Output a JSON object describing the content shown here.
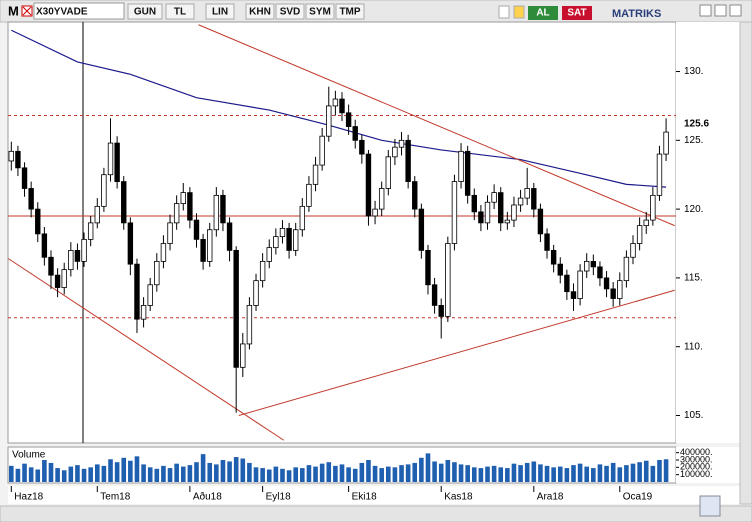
{
  "toolbar": {
    "logo": "M",
    "symbol": "X30YVADE",
    "buttons": [
      "GUN",
      "TL",
      "LIN",
      "KHN",
      "SVD",
      "SYM",
      "TMP"
    ],
    "buy": "AL",
    "sell": "SAT",
    "brand": "MATRIKS"
  },
  "chart_data": {
    "type": "candlestick",
    "ylim": [
      103.0,
      133.6
    ],
    "yticks": [
      {
        "value": 130,
        "label": "130."
      },
      {
        "value": 125,
        "label": "125."
      },
      {
        "value": 120,
        "label": "120."
      },
      {
        "value": 115,
        "label": "115."
      },
      {
        "value": 110,
        "label": "110."
      },
      {
        "value": 105,
        "label": "105."
      }
    ],
    "xlim": [
      -0.5,
      100.5
    ],
    "xticks": [
      {
        "value": 0,
        "label": "Haz18"
      },
      {
        "value": 13,
        "label": "Tem18"
      },
      {
        "value": 27,
        "label": "Aðu18"
      },
      {
        "value": 38,
        "label": "Eyl18"
      },
      {
        "value": 51,
        "label": "Eki18"
      },
      {
        "value": 65,
        "label": "Kas18"
      },
      {
        "value": 79,
        "label": "Ara18"
      },
      {
        "value": 92,
        "label": "Oca19"
      }
    ],
    "last_price": 125.6,
    "open": [
      123.5,
      124.2,
      123.0,
      121.5,
      120.0,
      118.2,
      116.5,
      115.2,
      114.3,
      115.6,
      117.0,
      116.2,
      117.8,
      119.0,
      120.2,
      122.5,
      124.8,
      122.0,
      119.0,
      116.0,
      112.0,
      113.0,
      114.5,
      116.2,
      117.5,
      119.0,
      120.4,
      121.2,
      119.2,
      117.8,
      116.2,
      118.5,
      121.0,
      119.0,
      117.0,
      108.5,
      110.2,
      113.0,
      114.8,
      116.2,
      117.2,
      118.0,
      118.6,
      117.0,
      118.5,
      120.2,
      121.8,
      123.2,
      125.3,
      127.5,
      128.0,
      127.0,
      126.0,
      125.0,
      124.0,
      119.5,
      120.0,
      121.5,
      123.8,
      124.5,
      125.0,
      122.0,
      120.0,
      117.0,
      114.5,
      113.0,
      112.2,
      117.5,
      122.0,
      124.2,
      121.0,
      119.8,
      119.0,
      120.5,
      121.2,
      119.0,
      119.2,
      120.3,
      120.8,
      121.5,
      120.0,
      118.2,
      117.0,
      116.0,
      115.2,
      114.0,
      113.5,
      115.5,
      116.2,
      115.8,
      115.0,
      114.2,
      113.5,
      114.8,
      116.5,
      117.5,
      118.8,
      119.2,
      121.0,
      124.0
    ],
    "high": [
      124.9,
      124.6,
      123.4,
      122.0,
      120.5,
      118.7,
      117.0,
      115.7,
      116.1,
      117.6,
      117.5,
      118.3,
      119.5,
      120.8,
      123.0,
      126.6,
      125.3,
      122.4,
      119.4,
      116.4,
      113.6,
      115.0,
      116.8,
      118.1,
      119.6,
      121.0,
      121.9,
      121.6,
      119.7,
      118.2,
      119.0,
      121.6,
      121.4,
      119.4,
      117.3,
      111.0,
      113.6,
      115.3,
      116.8,
      117.8,
      118.6,
      119.2,
      119.0,
      119.0,
      120.8,
      122.4,
      123.8,
      125.9,
      128.9,
      128.6,
      128.5,
      127.6,
      126.5,
      125.4,
      124.3,
      120.6,
      122.0,
      124.3,
      125.1,
      125.6,
      125.4,
      122.4,
      120.4,
      117.4,
      115.0,
      113.5,
      118.0,
      122.5,
      124.8,
      124.6,
      121.5,
      120.3,
      121.0,
      121.8,
      121.6,
      119.8,
      120.9,
      121.4,
      123.0,
      121.9,
      120.4,
      118.6,
      117.4,
      116.5,
      115.6,
      114.6,
      116.0,
      116.8,
      116.7,
      116.2,
      115.5,
      114.7,
      115.4,
      117.0,
      118.1,
      119.4,
      119.8,
      121.6,
      124.6,
      126.6
    ],
    "low": [
      122.8,
      122.4,
      120.9,
      119.4,
      117.6,
      115.9,
      114.2,
      113.6,
      113.8,
      115.1,
      115.6,
      115.8,
      117.3,
      118.6,
      119.8,
      122.0,
      121.5,
      118.5,
      115.2,
      111.0,
      111.4,
      112.6,
      114.0,
      115.7,
      117.0,
      118.5,
      119.9,
      118.6,
      117.2,
      115.6,
      115.8,
      118.0,
      118.4,
      116.2,
      105.2,
      107.8,
      109.8,
      112.6,
      114.3,
      115.7,
      116.7,
      117.5,
      116.4,
      116.6,
      118.0,
      119.8,
      121.3,
      122.8,
      124.9,
      126.8,
      126.4,
      125.4,
      124.4,
      123.3,
      118.8,
      118.9,
      119.5,
      121.0,
      123.2,
      123.9,
      121.5,
      119.4,
      116.4,
      113.8,
      112.4,
      110.6,
      111.8,
      117.0,
      121.5,
      120.4,
      119.2,
      118.4,
      118.5,
      120.0,
      118.4,
      118.5,
      118.7,
      119.8,
      120.3,
      119.4,
      117.6,
      116.4,
      115.4,
      114.6,
      113.4,
      112.6,
      113.0,
      115.0,
      115.2,
      114.4,
      113.6,
      112.9,
      113.0,
      114.3,
      116.0,
      117.0,
      118.2,
      118.8,
      120.6,
      123.5
    ],
    "close": [
      124.2,
      123.0,
      121.5,
      120.0,
      118.2,
      116.5,
      115.2,
      114.3,
      115.6,
      117.0,
      116.2,
      117.8,
      119.0,
      120.2,
      122.5,
      124.8,
      122.0,
      119.0,
      116.0,
      112.0,
      113.0,
      114.5,
      116.2,
      117.5,
      119.0,
      120.4,
      121.2,
      119.2,
      117.8,
      116.2,
      118.5,
      121.0,
      119.0,
      117.0,
      108.5,
      110.2,
      113.0,
      114.8,
      116.2,
      117.2,
      118.0,
      118.6,
      117.0,
      118.5,
      120.2,
      121.8,
      123.2,
      125.3,
      127.5,
      128.0,
      127.0,
      126.0,
      125.0,
      124.0,
      119.5,
      120.0,
      121.5,
      123.8,
      124.5,
      125.0,
      122.0,
      120.0,
      117.0,
      114.5,
      113.0,
      112.2,
      117.5,
      122.0,
      124.2,
      121.0,
      119.8,
      119.0,
      120.5,
      121.2,
      119.0,
      119.2,
      120.3,
      120.8,
      121.5,
      120.0,
      118.2,
      117.0,
      116.0,
      115.2,
      114.0,
      113.5,
      115.5,
      116.2,
      115.8,
      115.0,
      114.2,
      113.5,
      114.8,
      116.5,
      117.5,
      118.8,
      119.2,
      121.0,
      124.0,
      125.6
    ],
    "moving_average": {
      "color": "#1a1a8c",
      "x": [
        0,
        10,
        18,
        28,
        39,
        48,
        56,
        65,
        77,
        86,
        93,
        99
      ],
      "values": [
        133.0,
        130.7,
        129.8,
        128.1,
        127.2,
        126.1,
        125.0,
        124.3,
        123.6,
        122.6,
        121.8,
        121.6
      ]
    },
    "trend_lines": [
      {
        "x": [
          28.3,
          100.3
        ],
        "y": [
          133.4,
          118.8
        ]
      },
      {
        "x": [
          -0.45,
          41.2
        ],
        "y": [
          116.4,
          103.2
        ]
      },
      {
        "x": [
          34.4,
          100.3
        ],
        "y": [
          105.0,
          114.1
        ]
      }
    ],
    "dashed_levels": [
      126.8,
      112.1
    ],
    "solid_levels": [
      119.5
    ],
    "volume": {
      "name": "Volume",
      "color": "#1f5fb0",
      "ylim": [
        0,
        450000
      ],
      "yticks": [
        {
          "value": 400000,
          "label": "400000."
        },
        {
          "value": 300000,
          "label": "300000."
        },
        {
          "value": 200000,
          "label": "200000."
        },
        {
          "value": 100000,
          "label": "100000."
        }
      ],
      "values": [
        220000,
        180000,
        250000,
        200000,
        170000,
        300000,
        260000,
        190000,
        160000,
        210000,
        230000,
        180000,
        200000,
        240000,
        220000,
        310000,
        270000,
        330000,
        290000,
        350000,
        240000,
        200000,
        180000,
        220000,
        190000,
        250000,
        210000,
        230000,
        270000,
        380000,
        260000,
        240000,
        300000,
        280000,
        340000,
        320000,
        260000,
        200000,
        190000,
        170000,
        210000,
        180000,
        160000,
        200000,
        190000,
        230000,
        210000,
        250000,
        270000,
        220000,
        240000,
        200000,
        180000,
        260000,
        300000,
        220000,
        190000,
        210000,
        200000,
        230000,
        240000,
        260000,
        330000,
        390000,
        280000,
        250000,
        300000,
        270000,
        240000,
        230000,
        200000,
        190000,
        210000,
        220000,
        200000,
        190000,
        250000,
        230000,
        260000,
        280000,
        240000,
        220000,
        200000,
        210000,
        190000,
        230000,
        250000,
        210000,
        190000,
        240000,
        220000,
        260000,
        200000,
        230000,
        250000,
        270000,
        290000,
        220000,
        300000,
        310000
      ]
    }
  }
}
